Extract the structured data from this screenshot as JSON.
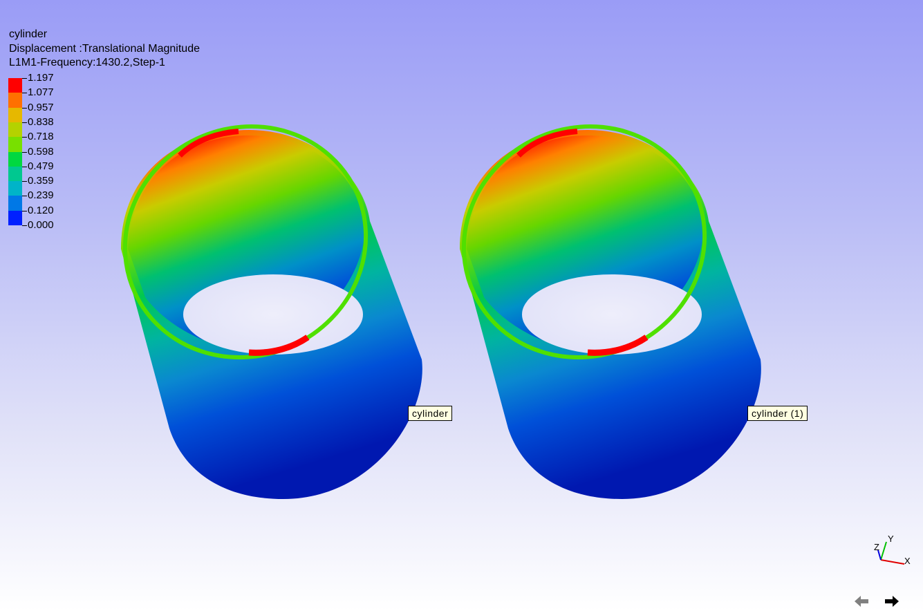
{
  "header": {
    "model_name": "cylinder",
    "result_type": "Displacement :Translational Magnitude",
    "step_info": "L1M1-Frequency:1430.2,Step-1"
  },
  "legend": {
    "labels": [
      "1.197",
      "1.077",
      "0.957",
      "0.838",
      "0.718",
      "0.598",
      "0.479",
      "0.359",
      "0.239",
      "0.120",
      "0.000"
    ],
    "colors": [
      "#ff0000",
      "#ff7000",
      "#e6b800",
      "#b4d200",
      "#78e000",
      "#00d840",
      "#00c890",
      "#00b4c8",
      "#0078e6",
      "#0020ff"
    ]
  },
  "parts": [
    {
      "label": "cylinder"
    },
    {
      "label": "cylinder (1)"
    }
  ],
  "triad": {
    "x": "X",
    "y": "Y",
    "z": "Z"
  },
  "nav": {
    "back_icon": "arrow-left-icon",
    "forward_icon": "arrow-right-icon"
  }
}
